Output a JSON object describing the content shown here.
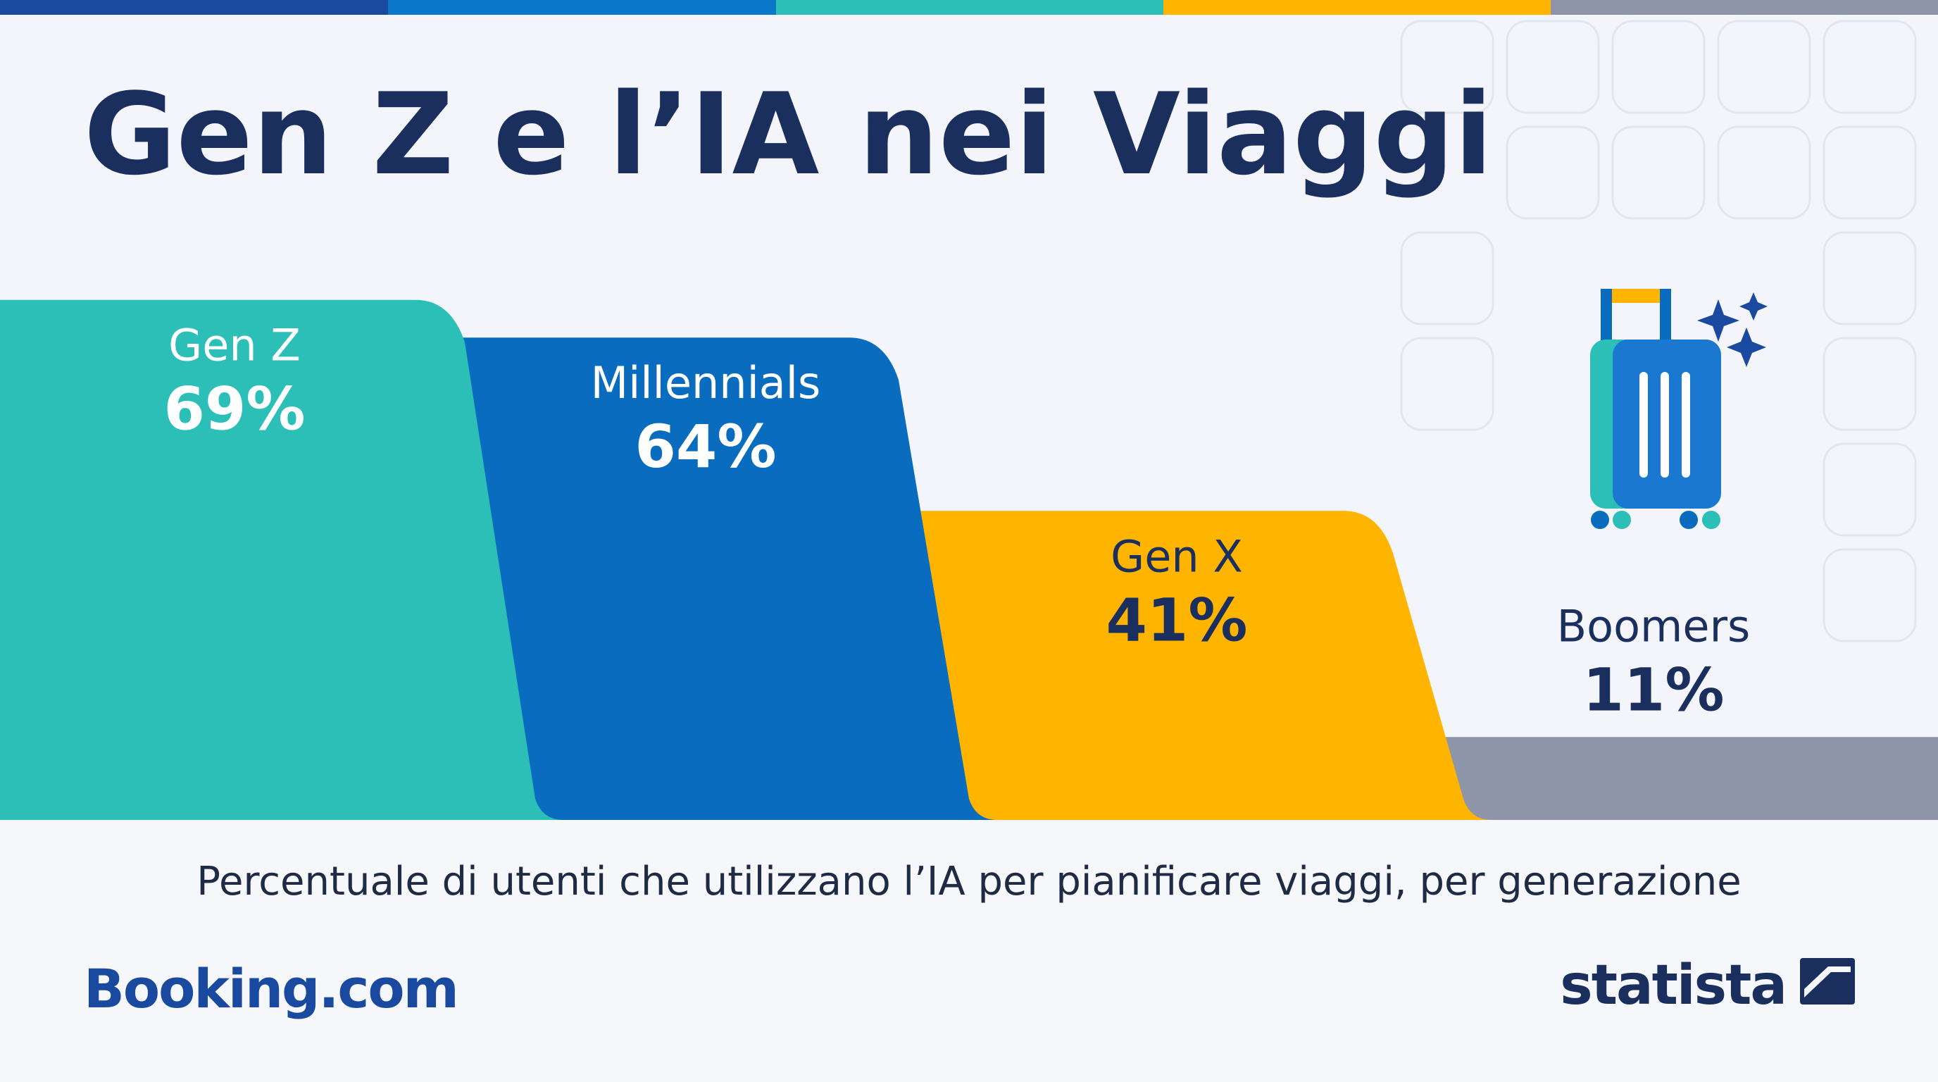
{
  "chart_data": {
    "type": "bar",
    "title": "Gen Z e l’IA nei Viaggi",
    "subtitle": "Percentuale di utenti che utilizzano l’IA per pianificare viaggi, per generazione",
    "categories": [
      "Gen Z",
      "Millennials",
      "Gen X",
      "Boomers"
    ],
    "values": [
      69,
      64,
      41,
      11
    ],
    "value_labels": [
      "69%",
      "64%",
      "41%",
      "11%"
    ],
    "colors": [
      "#2bbfb8",
      "#0a6cbf",
      "#ffb400",
      "#8f95a9"
    ]
  },
  "branding": {
    "left": "Booking.com",
    "right": "statista"
  }
}
